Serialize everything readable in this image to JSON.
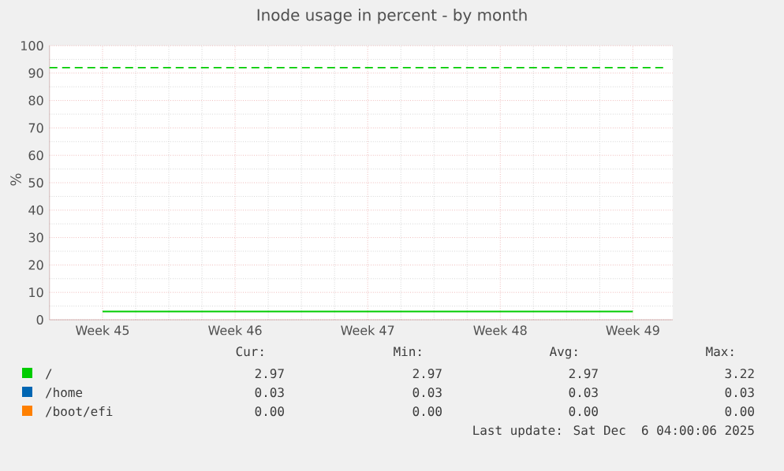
{
  "chart_data": {
    "type": "line",
    "title": "Inode usage in percent - by month",
    "ylabel": "%",
    "categories": [
      "Week 45",
      "Week 46",
      "Week 47",
      "Week 48",
      "Week 49"
    ],
    "series": [
      {
        "name": "/",
        "color": "#00cc00",
        "values": [
          3,
          3,
          3,
          3,
          3
        ]
      },
      {
        "name": "/home",
        "color": "#0066b3",
        "values": [
          null,
          null,
          null,
          null,
          null
        ]
      },
      {
        "name": "/boot/efi",
        "color": "#ff8000",
        "values": [
          null,
          null,
          null,
          null,
          null
        ]
      }
    ],
    "ylim": [
      0,
      100
    ],
    "yticks": [
      0,
      10,
      20,
      30,
      40,
      50,
      60,
      70,
      80,
      90,
      100
    ],
    "ref_lines": [
      {
        "axis": "y",
        "value": 92,
        "color": "#00cc00",
        "line_style": "dashed"
      }
    ],
    "grid": true,
    "legend": "bottom",
    "marker": "none",
    "line_style": "solid",
    "annotations": [
      "Cur:",
      "Min:",
      "Avg:",
      "Max:",
      "2.97",
      "2.97",
      "2.97",
      "3.22",
      "0.03",
      "0.03",
      "0.03",
      "0.03",
      "0.00",
      "0.00",
      "0.00",
      "0.00",
      "Last update: Sat Dec  6 04:00:06 2025"
    ]
  }
}
